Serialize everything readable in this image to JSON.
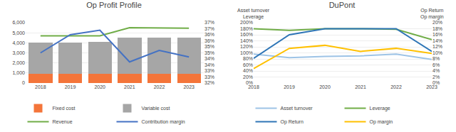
{
  "chart_data": [
    {
      "type": "bar",
      "title": "Op Profit Profile",
      "categories": [
        "2018",
        "2019",
        "2020",
        "2021",
        "2022",
        "2023"
      ],
      "stacked": true,
      "series": [
        {
          "name": "Fixed cost",
          "type": "bar",
          "color": "#f4753a",
          "values": [
            900,
            900,
            900,
            900,
            900,
            900
          ]
        },
        {
          "name": "Variable cost",
          "type": "bar",
          "color": "#a6a6a6",
          "values": [
            3100,
            3150,
            3200,
            3600,
            3600,
            3600
          ]
        },
        {
          "name": "Revenue",
          "type": "line",
          "color": "#70ad47",
          "values": [
            4700,
            4700,
            4700,
            5500,
            5500,
            5450
          ]
        },
        {
          "name": "Contribution margin",
          "type": "line",
          "color": "#4472c4",
          "values": [
            3000,
            4800,
            5250,
            2100,
            3250,
            2600
          ]
        }
      ],
      "ylim": [
        0,
        6000
      ],
      "yticks": [
        0,
        {
          "value": 1000,
          "label": "1,000"
        },
        {
          "value": 2000,
          "label": "2,000"
        },
        {
          "value": 3000,
          "label": "3,000"
        },
        {
          "value": 4000,
          "label": "4,000"
        },
        {
          "value": 5000,
          "label": "5,000"
        },
        {
          "value": 6000,
          "label": "6,000"
        }
      ],
      "y2lim": [
        0.32,
        0.37
      ],
      "y2ticks": [
        {
          "value": 0.32,
          "label": "32%"
        },
        {
          "value": 0.325,
          "label": "33%"
        },
        {
          "value": 0.33,
          "label": "33%"
        },
        {
          "value": 0.335,
          "label": "34%"
        },
        {
          "value": 0.34,
          "label": "34%"
        },
        {
          "value": 0.345,
          "label": "35%"
        },
        {
          "value": 0.35,
          "label": "35%"
        },
        {
          "value": 0.355,
          "label": "36%"
        },
        {
          "value": 0.36,
          "label": "36%"
        },
        {
          "value": 0.365,
          "label": "37%"
        },
        {
          "value": 0.37,
          "label": "37%"
        }
      ],
      "grid": true,
      "legend": "bottom"
    },
    {
      "type": "line",
      "title": "DuPont",
      "ylabel": "Asset turnover\nLeverage",
      "y2label": "Op Return\nOp margin",
      "categories": [
        "2018",
        "2019",
        "2020",
        "2021",
        "2022",
        "2023"
      ],
      "series": [
        {
          "name": "Asset turnover",
          "color": "#9dc3e6",
          "values": [
            0.96,
            0.84,
            0.88,
            0.9,
            0.96,
            0.78
          ]
        },
        {
          "name": "Leverage",
          "color": "#70ad47",
          "values": [
            1.8,
            1.75,
            1.8,
            1.8,
            1.78,
            1.44
          ]
        },
        {
          "name": "Op Return",
          "color": "#2e75b6",
          "values": [
            0.82,
            1.6,
            1.8,
            1.8,
            1.8,
            1.05
          ]
        },
        {
          "name": "Op margin",
          "color": "#ffc000",
          "axis": "y2",
          "values": [
            0.048,
            0.115,
            0.125,
            0.105,
            0.115,
            0.098
          ]
        }
      ],
      "ylim": [
        0,
        2.0
      ],
      "yticks": [
        {
          "value": 0,
          "label": "0%"
        },
        {
          "value": 0.2,
          "label": "20%"
        },
        {
          "value": 0.4,
          "label": "40%"
        },
        {
          "value": 0.6,
          "label": "60%"
        },
        {
          "value": 0.8,
          "label": "80%"
        },
        {
          "value": 1.0,
          "label": "100%"
        },
        {
          "value": 1.2,
          "label": "120%"
        },
        {
          "value": 1.4,
          "label": "140%"
        },
        {
          "value": 1.6,
          "label": "160%"
        },
        {
          "value": 1.8,
          "label": "180%"
        },
        {
          "value": 2.0,
          "label": "200%"
        }
      ],
      "y2lim": [
        0,
        0.2
      ],
      "y2ticks": [
        {
          "value": 0,
          "label": "0%"
        },
        {
          "value": 0.02,
          "label": "2%"
        },
        {
          "value": 0.04,
          "label": "4%"
        },
        {
          "value": 0.06,
          "label": "6%"
        },
        {
          "value": 0.08,
          "label": "8%"
        },
        {
          "value": 0.1,
          "label": "10%"
        },
        {
          "value": 0.12,
          "label": "12%"
        },
        {
          "value": 0.14,
          "label": "14%"
        },
        {
          "value": 0.16,
          "label": "16%"
        },
        {
          "value": 0.18,
          "label": "18%"
        },
        {
          "value": 0.2,
          "label": "20%"
        }
      ],
      "grid": true,
      "legend": "bottom"
    }
  ]
}
